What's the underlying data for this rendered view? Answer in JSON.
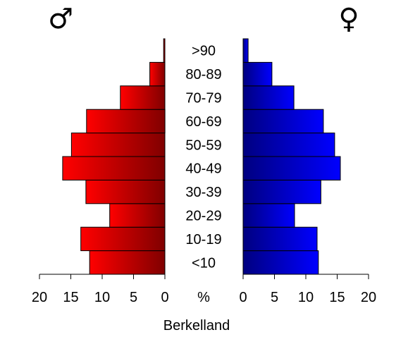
{
  "chart_data": {
    "type": "bar",
    "orientation": "horizontal-pyramid",
    "caption": "Berkelland",
    "unit": "%",
    "male_symbol": "♂",
    "female_symbol": "♀",
    "categories": [
      "<10",
      "10-19",
      "20-29",
      "30-39",
      "40-49",
      "50-59",
      "60-69",
      "70-79",
      "80-89",
      ">90"
    ],
    "series": [
      {
        "side": "left",
        "color": "#ff0000",
        "color_dark": "#800000",
        "values": [
          12.0,
          13.4,
          8.8,
          12.6,
          16.3,
          14.9,
          12.5,
          7.1,
          2.4,
          0.2
        ]
      },
      {
        "side": "right",
        "color": "#0000ff",
        "color_dark": "#000080",
        "values": [
          12.0,
          11.8,
          8.2,
          12.4,
          15.5,
          14.6,
          12.8,
          8.1,
          4.6,
          0.8
        ]
      }
    ],
    "xlim": [
      0,
      20
    ],
    "ticks": [
      0,
      5,
      10,
      15,
      20
    ],
    "grid": false,
    "legend": "none"
  }
}
